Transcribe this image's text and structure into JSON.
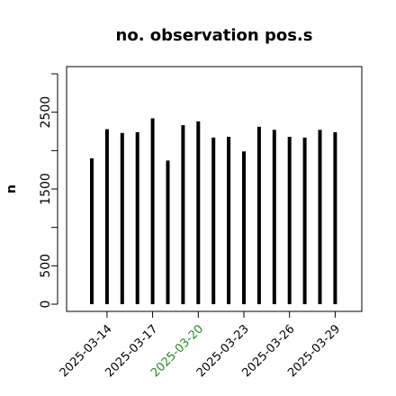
{
  "chart_data": {
    "type": "bar",
    "title": "no. observation pos.s",
    "xlabel": "",
    "ylabel": "n",
    "x": [
      "2025-03-13",
      "2025-03-14",
      "2025-03-15",
      "2025-03-16",
      "2025-03-17",
      "2025-03-18",
      "2025-03-19",
      "2025-03-20",
      "2025-03-21",
      "2025-03-22",
      "2025-03-23",
      "2025-03-24",
      "2025-03-25",
      "2025-03-26",
      "2025-03-27",
      "2025-03-28",
      "2025-03-29"
    ],
    "values": [
      1900,
      2280,
      2230,
      2240,
      2420,
      1870,
      2330,
      2380,
      2170,
      2180,
      1990,
      2310,
      2270,
      2180,
      2170,
      2270,
      2240
    ],
    "ylim": [
      0,
      3000
    ],
    "yticks": [
      0,
      500,
      1000,
      1500,
      2000,
      2500,
      3000
    ],
    "ytick_labels": [
      "0",
      "500",
      "",
      "1500",
      "",
      "2500",
      ""
    ],
    "xticks": [
      "2025-03-14",
      "2025-03-17",
      "2025-03-20",
      "2025-03-23",
      "2025-03-26",
      "2025-03-29"
    ],
    "highlight_tick": "2025-03-20",
    "colors": {
      "bar": "#000000",
      "highlight": "#228b22",
      "text": "#000000"
    },
    "grid": false,
    "legend": "none"
  }
}
